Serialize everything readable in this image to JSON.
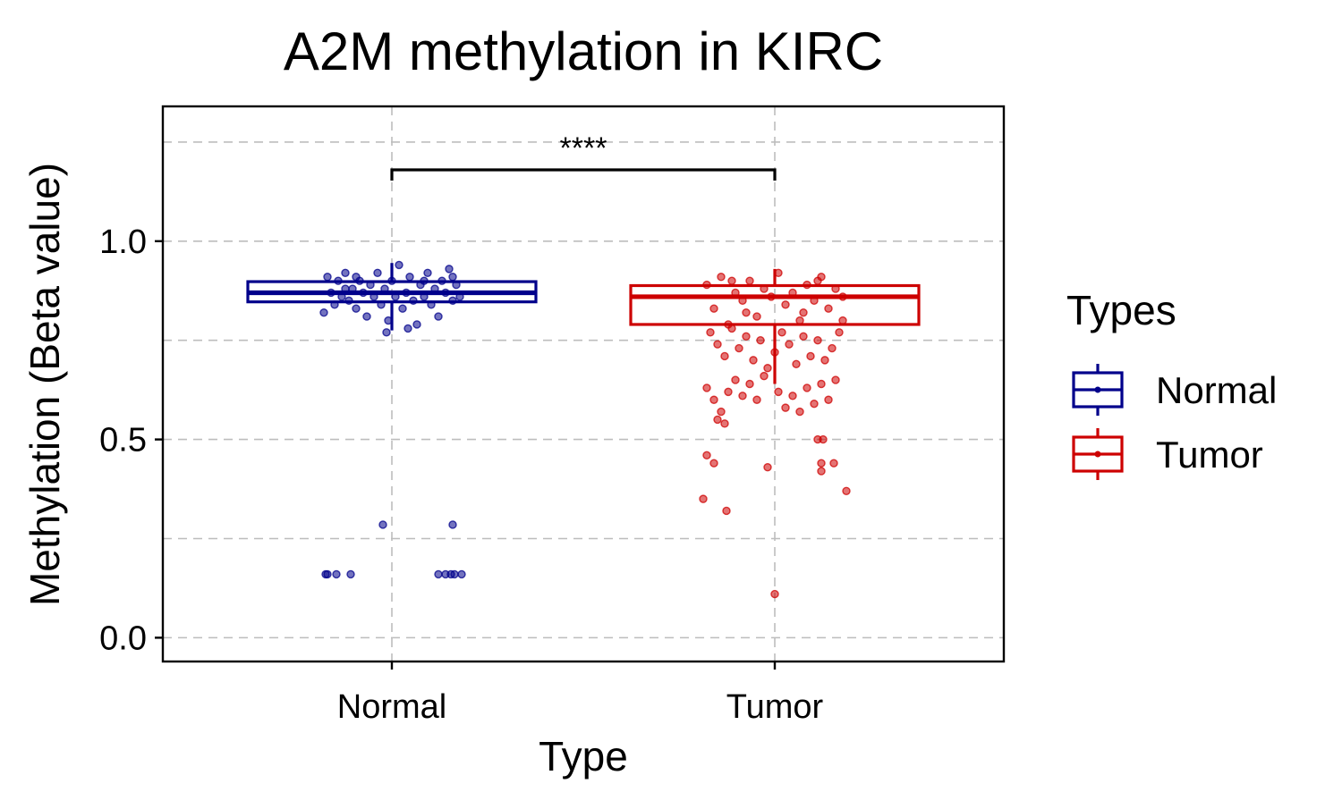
{
  "chart_data": {
    "type": "box",
    "title": "A2M methylation in KIRC",
    "xlabel": "Type",
    "ylabel": "Methylation (Beta value)",
    "categories": [
      "Normal",
      "Tumor"
    ],
    "ylim": [
      -0.06,
      1.34
    ],
    "yticks": [
      0.0,
      0.5,
      1.0
    ],
    "yticklabels": [
      "0.0",
      "0.5",
      "1.0"
    ],
    "grid": true,
    "legend": {
      "title": "Types",
      "position": "right",
      "entries": [
        "Normal",
        "Tumor"
      ]
    },
    "colors": {
      "Normal": "#00008B",
      "Tumor": "#CD0000"
    },
    "significance": {
      "label": "****",
      "between": [
        "Normal",
        "Tumor"
      ],
      "y": 1.18
    },
    "series": [
      {
        "name": "Normal",
        "box": {
          "whisker_low": 0.775,
          "q1": 0.847,
          "median": 0.87,
          "q3": 0.898,
          "whisker_high": 0.945
        },
        "outliers": [
          {
            "x": -0.185,
            "y": 0.16
          },
          {
            "x": -0.18,
            "y": 0.16
          },
          {
            "x": -0.155,
            "y": 0.16
          },
          {
            "x": -0.115,
            "y": 0.16
          },
          {
            "x": -0.025,
            "y": 0.285
          },
          {
            "x": 0.13,
            "y": 0.16
          },
          {
            "x": 0.15,
            "y": 0.16
          },
          {
            "x": 0.165,
            "y": 0.16
          },
          {
            "x": 0.17,
            "y": 0.285
          },
          {
            "x": 0.175,
            "y": 0.16
          },
          {
            "x": 0.195,
            "y": 0.16
          }
        ],
        "points": [
          {
            "x": -0.19,
            "y": 0.82
          },
          {
            "x": -0.18,
            "y": 0.91
          },
          {
            "x": -0.17,
            "y": 0.87
          },
          {
            "x": -0.16,
            "y": 0.84
          },
          {
            "x": -0.15,
            "y": 0.9
          },
          {
            "x": -0.14,
            "y": 0.86
          },
          {
            "x": -0.13,
            "y": 0.92
          },
          {
            "x": -0.12,
            "y": 0.85
          },
          {
            "x": -0.11,
            "y": 0.88
          },
          {
            "x": -0.1,
            "y": 0.83
          },
          {
            "x": -0.09,
            "y": 0.9
          },
          {
            "x": -0.08,
            "y": 0.87
          },
          {
            "x": -0.07,
            "y": 0.81
          },
          {
            "x": -0.06,
            "y": 0.89
          },
          {
            "x": -0.05,
            "y": 0.86
          },
          {
            "x": -0.04,
            "y": 0.92
          },
          {
            "x": -0.03,
            "y": 0.84
          },
          {
            "x": -0.02,
            "y": 0.88
          },
          {
            "x": -0.01,
            "y": 0.8
          },
          {
            "x": 0.0,
            "y": 0.9
          },
          {
            "x": 0.01,
            "y": 0.86
          },
          {
            "x": 0.02,
            "y": 0.94
          },
          {
            "x": 0.03,
            "y": 0.83
          },
          {
            "x": 0.04,
            "y": 0.87
          },
          {
            "x": 0.05,
            "y": 0.91
          },
          {
            "x": 0.06,
            "y": 0.85
          },
          {
            "x": 0.07,
            "y": 0.79
          },
          {
            "x": 0.08,
            "y": 0.89
          },
          {
            "x": 0.09,
            "y": 0.86
          },
          {
            "x": 0.1,
            "y": 0.92
          },
          {
            "x": 0.11,
            "y": 0.84
          },
          {
            "x": 0.12,
            "y": 0.88
          },
          {
            "x": 0.13,
            "y": 0.81
          },
          {
            "x": 0.14,
            "y": 0.9
          },
          {
            "x": 0.15,
            "y": 0.87
          },
          {
            "x": 0.16,
            "y": 0.93
          },
          {
            "x": 0.17,
            "y": 0.85
          },
          {
            "x": 0.18,
            "y": 0.89
          },
          {
            "x": 0.19,
            "y": 0.86
          },
          {
            "x": -0.015,
            "y": 0.77
          },
          {
            "x": 0.045,
            "y": 0.78
          },
          {
            "x": -0.1,
            "y": 0.91
          },
          {
            "x": 0.09,
            "y": 0.9
          },
          {
            "x": -0.13,
            "y": 0.88
          },
          {
            "x": 0.17,
            "y": 0.91
          }
        ]
      },
      {
        "name": "Tumor",
        "box": {
          "whisker_low": 0.64,
          "q1": 0.79,
          "median": 0.86,
          "q3": 0.888,
          "whisker_high": 0.93
        },
        "outliers": [
          {
            "x": -0.2,
            "y": 0.35
          },
          {
            "x": -0.19,
            "y": 0.46
          },
          {
            "x": -0.17,
            "y": 0.44
          },
          {
            "x": -0.135,
            "y": 0.32
          },
          {
            "x": -0.02,
            "y": 0.43
          },
          {
            "x": 0.0,
            "y": 0.11
          },
          {
            "x": 0.12,
            "y": 0.5
          },
          {
            "x": 0.13,
            "y": 0.42
          },
          {
            "x": 0.13,
            "y": 0.44
          },
          {
            "x": 0.135,
            "y": 0.5
          },
          {
            "x": 0.165,
            "y": 0.44
          },
          {
            "x": 0.2,
            "y": 0.37
          }
        ],
        "points": [
          {
            "x": -0.19,
            "y": 0.89
          },
          {
            "x": -0.17,
            "y": 0.83
          },
          {
            "x": -0.15,
            "y": 0.91
          },
          {
            "x": -0.13,
            "y": 0.79
          },
          {
            "x": -0.11,
            "y": 0.87
          },
          {
            "x": -0.09,
            "y": 0.85
          },
          {
            "x": -0.07,
            "y": 0.9
          },
          {
            "x": -0.05,
            "y": 0.81
          },
          {
            "x": -0.03,
            "y": 0.88
          },
          {
            "x": -0.01,
            "y": 0.86
          },
          {
            "x": 0.01,
            "y": 0.92
          },
          {
            "x": 0.03,
            "y": 0.84
          },
          {
            "x": 0.05,
            "y": 0.87
          },
          {
            "x": 0.07,
            "y": 0.8
          },
          {
            "x": 0.09,
            "y": 0.89
          },
          {
            "x": 0.11,
            "y": 0.85
          },
          {
            "x": 0.13,
            "y": 0.91
          },
          {
            "x": 0.15,
            "y": 0.83
          },
          {
            "x": 0.17,
            "y": 0.88
          },
          {
            "x": 0.19,
            "y": 0.86
          },
          {
            "x": -0.18,
            "y": 0.77
          },
          {
            "x": -0.16,
            "y": 0.74
          },
          {
            "x": -0.14,
            "y": 0.71
          },
          {
            "x": -0.12,
            "y": 0.78
          },
          {
            "x": -0.1,
            "y": 0.73
          },
          {
            "x": -0.08,
            "y": 0.76
          },
          {
            "x": -0.06,
            "y": 0.7
          },
          {
            "x": -0.04,
            "y": 0.75
          },
          {
            "x": -0.02,
            "y": 0.68
          },
          {
            "x": 0.0,
            "y": 0.72
          },
          {
            "x": 0.02,
            "y": 0.77
          },
          {
            "x": 0.04,
            "y": 0.74
          },
          {
            "x": 0.06,
            "y": 0.69
          },
          {
            "x": 0.08,
            "y": 0.76
          },
          {
            "x": 0.1,
            "y": 0.71
          },
          {
            "x": 0.12,
            "y": 0.75
          },
          {
            "x": 0.14,
            "y": 0.7
          },
          {
            "x": 0.16,
            "y": 0.73
          },
          {
            "x": 0.18,
            "y": 0.77
          },
          {
            "x": -0.19,
            "y": 0.63
          },
          {
            "x": -0.17,
            "y": 0.6
          },
          {
            "x": -0.15,
            "y": 0.57
          },
          {
            "x": -0.13,
            "y": 0.62
          },
          {
            "x": -0.11,
            "y": 0.65
          },
          {
            "x": -0.09,
            "y": 0.61
          },
          {
            "x": -0.07,
            "y": 0.64
          },
          {
            "x": -0.05,
            "y": 0.6
          },
          {
            "x": -0.03,
            "y": 0.66
          },
          {
            "x": 0.01,
            "y": 0.62
          },
          {
            "x": 0.03,
            "y": 0.58
          },
          {
            "x": 0.05,
            "y": 0.61
          },
          {
            "x": 0.07,
            "y": 0.57
          },
          {
            "x": 0.09,
            "y": 0.63
          },
          {
            "x": 0.11,
            "y": 0.59
          },
          {
            "x": 0.13,
            "y": 0.64
          },
          {
            "x": 0.15,
            "y": 0.6
          },
          {
            "x": 0.17,
            "y": 0.65
          },
          {
            "x": -0.16,
            "y": 0.55
          },
          {
            "x": -0.14,
            "y": 0.54
          },
          {
            "x": -0.08,
            "y": 0.82
          },
          {
            "x": 0.08,
            "y": 0.82
          },
          {
            "x": -0.12,
            "y": 0.9
          },
          {
            "x": 0.12,
            "y": 0.9
          },
          {
            "x": 0.19,
            "y": 0.8
          }
        ]
      }
    ]
  }
}
